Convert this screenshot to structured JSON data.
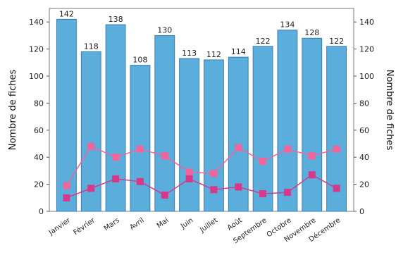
{
  "chart_data": {
    "type": "bar",
    "categories": [
      "Janvier",
      "Février",
      "Mars",
      "Avril",
      "Mai",
      "Juin",
      "Juillet",
      "Août",
      "Septembre",
      "Octobre",
      "Novembre",
      "Décembre"
    ],
    "series": [
      {
        "values": [
          142,
          118,
          138,
          108,
          130,
          113,
          112,
          114,
          122,
          134,
          128,
          122
        ],
        "data_labels": [
          "142",
          "118",
          "138",
          "108",
          "130",
          "113",
          "112",
          "114",
          "122",
          "134",
          "128",
          "122"
        ],
        "color": "#5BAEDC"
      },
      {
        "values": [
          19,
          48,
          40,
          46,
          41,
          29,
          28,
          47,
          37,
          46,
          41,
          46
        ],
        "color": "#F2649A"
      },
      {
        "values": [
          10,
          17,
          24,
          22,
          12,
          24,
          16,
          18,
          13,
          14,
          27,
          17
        ],
        "color": "#D7398A"
      }
    ],
    "ylabel": "Nombre de fiches",
    "y2label": "Nombre de fiches",
    "ylim": [
      0,
      150
    ],
    "y2lim": [
      0,
      150
    ],
    "yticks": [
      0,
      20,
      40,
      60,
      80,
      100,
      120,
      140
    ],
    "grid": false,
    "legend": "none"
  }
}
